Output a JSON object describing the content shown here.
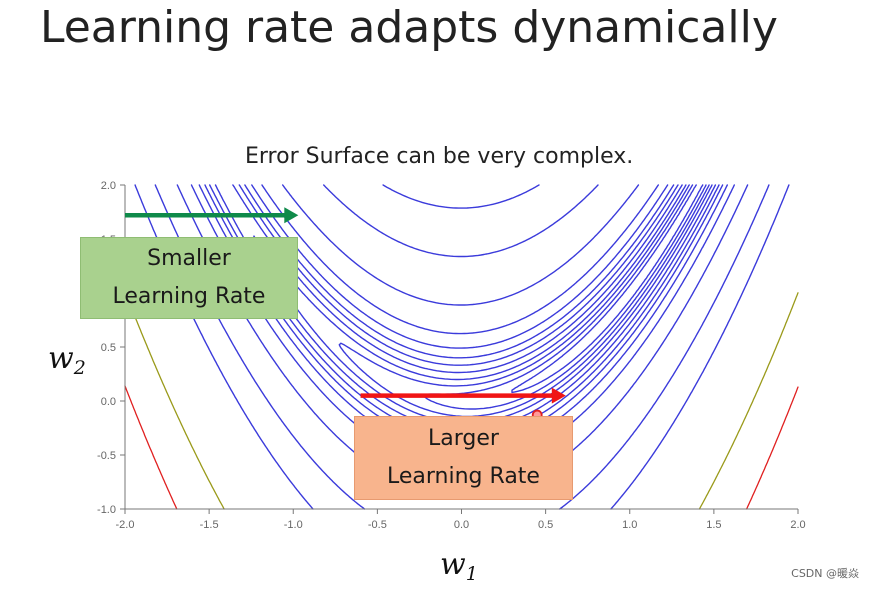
{
  "slide": {
    "title": "Learning rate adapts dynamically",
    "watermark": "CSDN @暖焱"
  },
  "colors": {
    "contour": "#3b3bdb",
    "olive_contour": "#9a9a1a",
    "red_contour": "#e02020",
    "green_arrow": "#0f8a4a",
    "red_arrow": "#f01515",
    "axis": "#777777"
  },
  "callouts": {
    "smaller": {
      "line1": "Smaller",
      "line2": "Learning Rate"
    },
    "larger": {
      "line1": "Larger",
      "line2": "Learning Rate"
    }
  },
  "chart_data": {
    "type": "contour",
    "title": "Error Surface can be very complex.",
    "xlabel": "w",
    "xlabel_sub": "1",
    "ylabel": "w",
    "ylabel_sub": "2",
    "xlim": [
      -2.0,
      2.0
    ],
    "ylim": [
      -1.0,
      2.0
    ],
    "x_ticks": [
      "-2.0",
      "-1.5",
      "-1.0",
      "-0.5",
      "0.0",
      "0.5",
      "1.0",
      "1.5",
      "2.0"
    ],
    "y_ticks": [
      "-1.0",
      "-0.5",
      "0.0",
      "0.5",
      "1.0",
      "1.5",
      "2.0"
    ],
    "grid": false,
    "contour_levels": [
      0.5,
      1.5,
      3,
      5,
      8,
      12,
      17,
      25,
      40,
      80,
      180
    ],
    "outer_level": 320,
    "extra_levels": [
      {
        "level": 900,
        "color": "olive"
      },
      {
        "level": 1500,
        "color": "red"
      }
    ],
    "marker": {
      "x": 0.45,
      "y": -0.13
    },
    "green_arrow": {
      "from": [
        -2.0,
        1.72
      ],
      "to": [
        -0.97,
        1.72
      ]
    },
    "red_arrow": {
      "from": [
        -0.6,
        0.05
      ],
      "to": [
        0.62,
        0.05
      ]
    }
  }
}
